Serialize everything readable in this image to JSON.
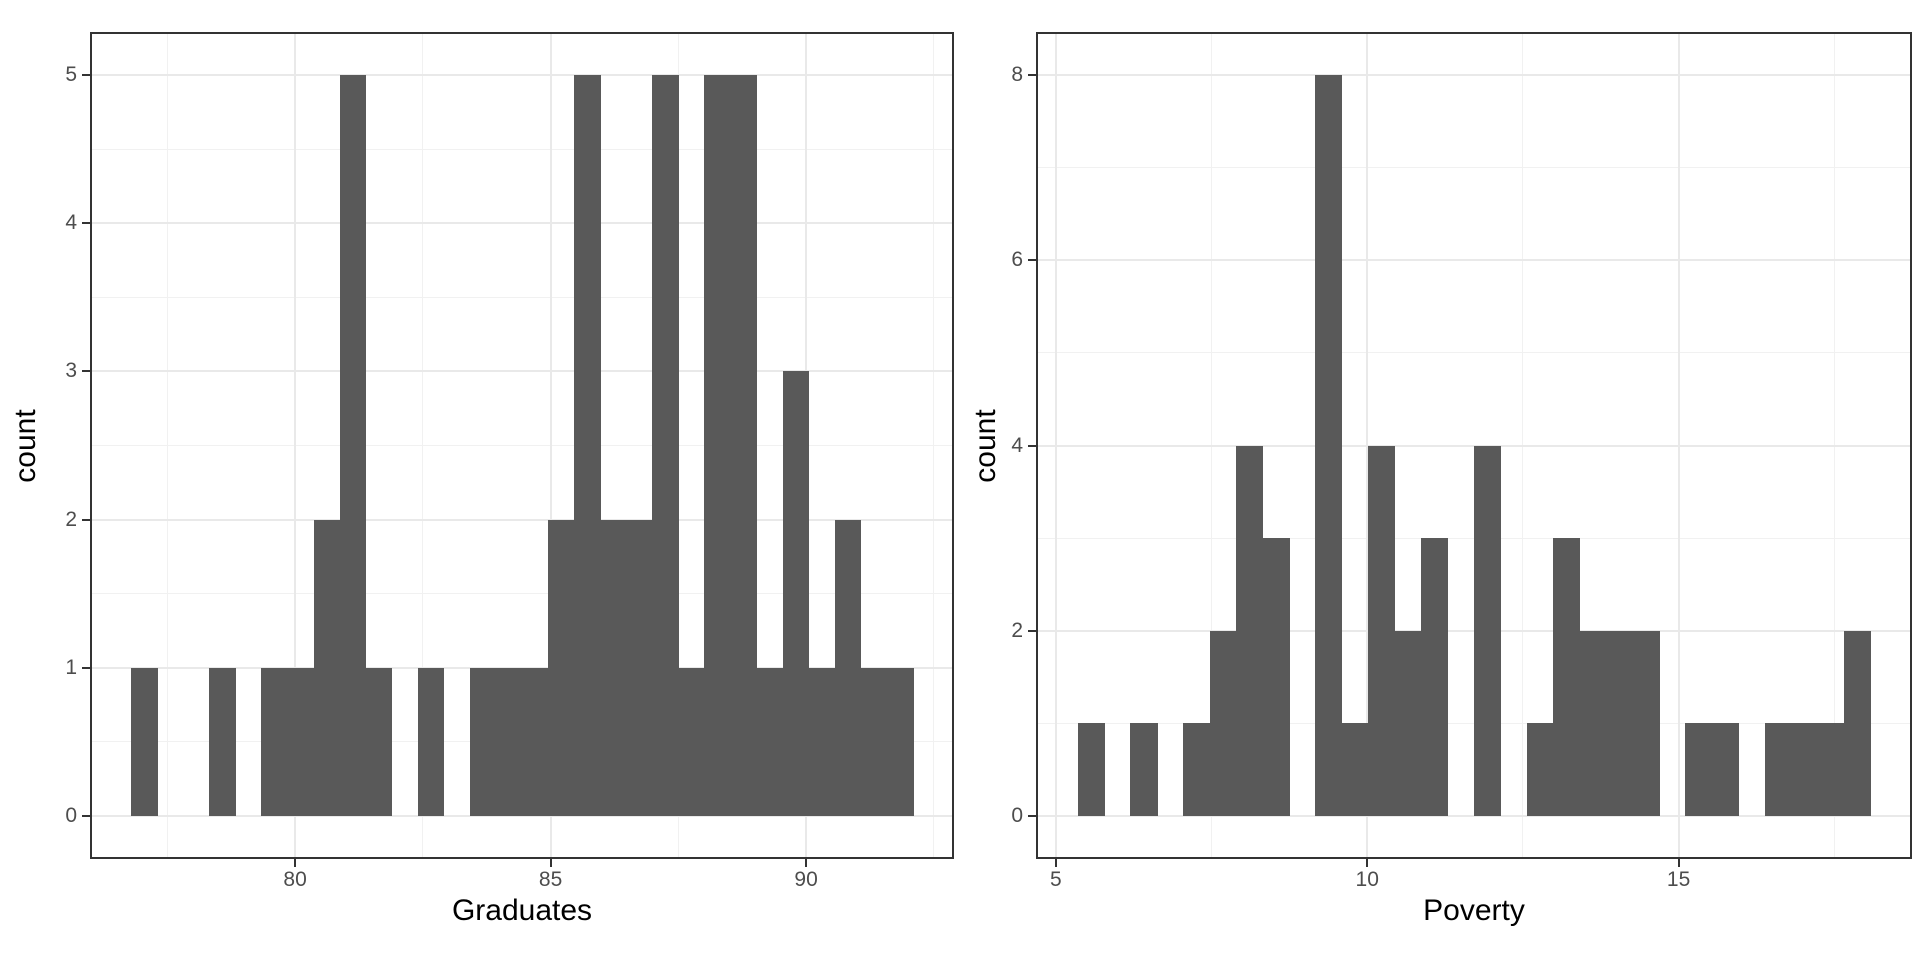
{
  "colors": {
    "bar_fill": "#595959",
    "panel_background": "#FFFFFF",
    "panel_border": "#333333",
    "grid_major": "#E9E9E9",
    "grid_minor": "#F1F1F1",
    "axis_tick": "#333333",
    "tick_label": "#4D4D4D",
    "axis_title": "#000000"
  },
  "chart_data": [
    {
      "type": "histogram",
      "title": "",
      "xlabel": "Graduates",
      "ylabel": "count",
      "n_bins": 30,
      "bin_start": 76.79,
      "bin_width": 0.51,
      "counts": [
        1,
        0,
        0,
        1,
        0,
        1,
        1,
        2,
        5,
        1,
        0,
        1,
        0,
        1,
        1,
        1,
        2,
        5,
        2,
        2,
        5,
        1,
        5,
        5,
        1,
        3,
        1,
        2,
        1,
        1
      ],
      "total_observations": 52,
      "x_ticks": [
        80,
        85,
        90
      ],
      "x_tick_labels": [
        "80",
        "85",
        "90"
      ],
      "x_minor_ticks": [
        77.5,
        82.5,
        87.5,
        92.5
      ],
      "y_max": 5,
      "y_ticks": [
        0,
        1,
        2,
        3,
        4,
        5
      ],
      "y_tick_labels": [
        "0",
        "1",
        "2",
        "3",
        "4",
        "5"
      ],
      "y_minor_ticks": [
        0.5,
        1.5,
        2.5,
        3.5,
        4.5
      ],
      "x_range_shown": [
        76.0,
        92.9
      ],
      "y_range_shown": [
        -0.26,
        5.26
      ],
      "grid": true,
      "legend": "none"
    },
    {
      "type": "histogram",
      "title": "",
      "xlabel": "Poverty",
      "ylabel": "count",
      "n_bins": 30,
      "bin_start": 5.35,
      "bin_width": 0.4243,
      "counts": [
        1,
        0,
        1,
        0,
        1,
        2,
        4,
        3,
        0,
        8,
        1,
        4,
        2,
        3,
        0,
        4,
        0,
        1,
        3,
        2,
        2,
        2,
        0,
        1,
        1,
        0,
        1,
        1,
        1,
        2
      ],
      "total_observations": 51,
      "x_ticks": [
        5,
        10,
        15
      ],
      "x_tick_labels": [
        "5",
        "10",
        "15"
      ],
      "x_minor_ticks": [
        7.5,
        12.5,
        17.5
      ],
      "y_max": 8,
      "y_ticks": [
        0,
        2,
        4,
        6,
        8
      ],
      "y_tick_labels": [
        "0",
        "2",
        "4",
        "6",
        "8"
      ],
      "y_minor_ticks": [
        1,
        3,
        5,
        7
      ],
      "x_range_shown": [
        4.7,
        18.7
      ],
      "y_range_shown": [
        -0.42,
        8.42
      ],
      "grid": true,
      "legend": "none"
    }
  ]
}
